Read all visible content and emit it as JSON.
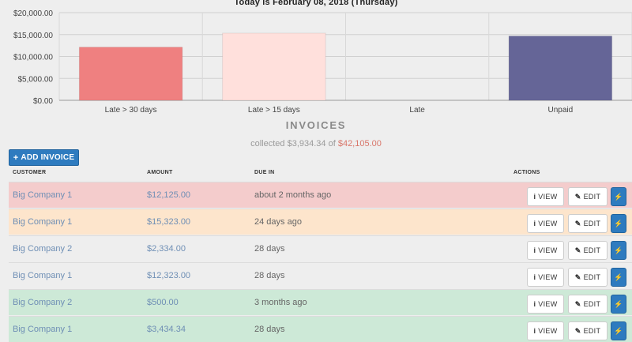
{
  "header": {
    "today_text": "Today is February 08, 2018 (Thursday)"
  },
  "chart_data": {
    "type": "bar",
    "categories": [
      "Late > 30 days",
      "Late > 15 days",
      "Late",
      "Unpaid"
    ],
    "values": [
      12125,
      15323,
      0,
      14657
    ],
    "colors": [
      "#ef8080",
      "#ffe0dc",
      "#cccccc",
      "#656597"
    ],
    "ylim": [
      0,
      20000
    ],
    "yticks": [
      0,
      5000,
      10000,
      15000,
      20000
    ],
    "ytick_labels": [
      "$0.00",
      "$5,000.00",
      "$10,000.00",
      "$15,000.00",
      "$20,000.00"
    ],
    "grid": true
  },
  "invoices": {
    "title": "INVOICES",
    "collected_prefix": "collected",
    "collected_amount": "$3,934.34",
    "collected_of": "of",
    "collected_total": "$42,105.00",
    "add_label": "ADD INVOICE"
  },
  "table": {
    "columns": [
      "CUSTOMER",
      "AMOUNT",
      "DUE IN",
      "ACTIONS"
    ],
    "view_label": "VIEW",
    "edit_label": "EDIT",
    "rows": [
      {
        "customer": "Big Company 1",
        "amount": "$12,125.00",
        "due": "about 2 months ago",
        "color": "#f4cccc"
      },
      {
        "customer": "Big Company 1",
        "amount": "$15,323.00",
        "due": "24 days ago",
        "color": "#fde5cc"
      },
      {
        "customer": "Big Company 2",
        "amount": "$2,334.00",
        "due": "28 days",
        "color": "#eeeeee"
      },
      {
        "customer": "Big Company 1",
        "amount": "$12,323.00",
        "due": "28 days",
        "color": "#eeeeee"
      },
      {
        "customer": "Big Company 2",
        "amount": "$500.00",
        "due": "3 months ago",
        "color": "#cde9d7"
      },
      {
        "customer": "Big Company 1",
        "amount": "$3,434.34",
        "due": "28 days",
        "color": "#cde9d7"
      }
    ]
  }
}
